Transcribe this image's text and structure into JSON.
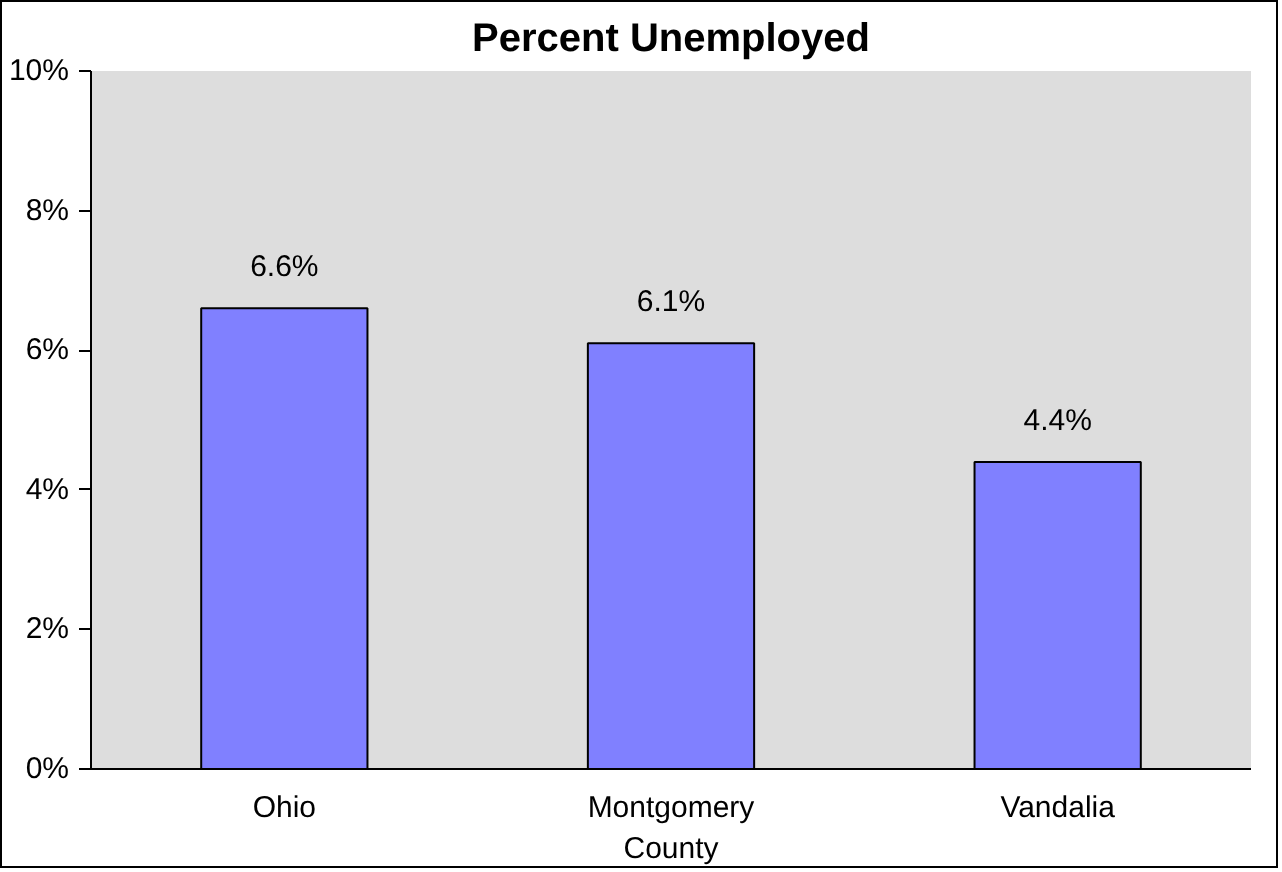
{
  "chart_data": {
    "type": "bar",
    "title": "Percent Unemployed",
    "categories": [
      "Ohio",
      "Montgomery County",
      "Vandalia"
    ],
    "values": [
      6.6,
      6.1,
      4.4
    ],
    "color": "#8080ff",
    "ylim": [
      0,
      10
    ],
    "yticks": [
      {
        "value": 0,
        "label": "0%"
      },
      {
        "value": 2,
        "label": "2%"
      },
      {
        "value": 4,
        "label": "4%"
      },
      {
        "value": 6,
        "label": "6%"
      },
      {
        "value": 8,
        "label": "8%"
      },
      {
        "value": 10,
        "label": "10%"
      }
    ],
    "value_labels": [
      "6.6%",
      "6.1%",
      "4.4%"
    ],
    "grid": false
  }
}
